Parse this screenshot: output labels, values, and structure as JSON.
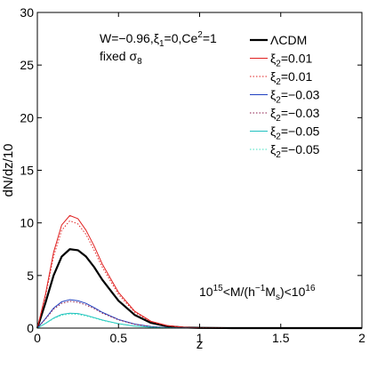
{
  "chart_data": {
    "type": "line",
    "xlabel": "z",
    "ylabel": "dN/dz/10",
    "xlim": [
      0,
      2
    ],
    "ylim": [
      0,
      30
    ],
    "xticks": [
      "0",
      "0.5",
      "1",
      "1.5",
      "2"
    ],
    "yticks": [
      "0",
      "5",
      "10",
      "15",
      "20",
      "25",
      "30"
    ],
    "grid": false,
    "legend_position": "top-right",
    "annotations": {
      "params_line1": "W=−0.96,ξ",
      "params_line1_sub": "1",
      "params_line1_rest": "=0,Ce",
      "params_line1_sup": "2",
      "params_line1_end": "=1",
      "params_line2": "fixed σ",
      "params_line2_sub": "8",
      "mass_range_a": "10",
      "mass_range_a_sup": "15",
      "mass_range_b": "<M/(h",
      "mass_range_b_sup": "−1",
      "mass_range_c": "M",
      "mass_range_c_sub": "s",
      "mass_range_d": ")<10",
      "mass_range_d_sup": "16"
    },
    "series": [
      {
        "name": "ΛCDM",
        "name_main": "ΛCDM",
        "name_sub": "",
        "name_rest": "",
        "color": "#000000",
        "style": "solid",
        "width": 2.2,
        "x": [
          0,
          0.05,
          0.1,
          0.15,
          0.2,
          0.25,
          0.3,
          0.35,
          0.4,
          0.5,
          0.6,
          0.7,
          0.8,
          0.9,
          1.0,
          1.2,
          1.5,
          2.0
        ],
        "y": [
          0,
          2.4,
          5.0,
          6.8,
          7.5,
          7.4,
          6.8,
          5.8,
          4.6,
          2.6,
          1.25,
          0.5,
          0.18,
          0.06,
          0.02,
          0,
          0,
          0
        ]
      },
      {
        "name": "ξ2=0.01",
        "name_main": "ξ",
        "name_sub": "2",
        "name_rest": "=0.01",
        "color": "#e02020",
        "style": "solid",
        "width": 1,
        "x": [
          0,
          0.05,
          0.1,
          0.15,
          0.2,
          0.25,
          0.3,
          0.35,
          0.4,
          0.5,
          0.6,
          0.7,
          0.8,
          0.9,
          1.0,
          1.2,
          1.5,
          2.0
        ],
        "y": [
          0,
          3.2,
          7.2,
          9.8,
          10.7,
          10.4,
          9.3,
          7.8,
          6.1,
          3.4,
          1.6,
          0.65,
          0.24,
          0.08,
          0.02,
          0,
          0,
          0
        ]
      },
      {
        "name": "ξ2=0.01",
        "name_main": "ξ",
        "name_sub": "2",
        "name_rest": "=0.01",
        "color": "#e02020",
        "style": "dotted",
        "width": 1,
        "x": [
          0,
          0.05,
          0.1,
          0.15,
          0.2,
          0.25,
          0.3,
          0.35,
          0.4,
          0.5,
          0.6,
          0.7,
          0.8,
          0.9,
          1.0,
          1.2,
          1.5,
          2.0
        ],
        "y": [
          0,
          3.0,
          6.8,
          9.3,
          10.2,
          9.9,
          8.9,
          7.4,
          5.8,
          3.2,
          1.5,
          0.6,
          0.22,
          0.07,
          0.02,
          0,
          0,
          0
        ]
      },
      {
        "name": "ξ2=−0.03",
        "name_main": "ξ",
        "name_sub": "2",
        "name_rest": "=−0.03",
        "color": "#2040c0",
        "style": "solid",
        "width": 1,
        "x": [
          0,
          0.05,
          0.1,
          0.15,
          0.2,
          0.25,
          0.3,
          0.35,
          0.4,
          0.5,
          0.6,
          0.7,
          0.8,
          0.9,
          1.0,
          1.2,
          1.5,
          2.0
        ],
        "y": [
          0,
          0.9,
          1.9,
          2.5,
          2.7,
          2.6,
          2.35,
          1.95,
          1.5,
          0.82,
          0.38,
          0.15,
          0.05,
          0.02,
          0,
          0,
          0,
          0
        ]
      },
      {
        "name": "ξ2=−0.03",
        "name_main": "ξ",
        "name_sub": "2",
        "name_rest": "=−0.03",
        "color": "#8b1a4a",
        "style": "dotted",
        "width": 1,
        "x": [
          0,
          0.05,
          0.1,
          0.15,
          0.2,
          0.25,
          0.3,
          0.35,
          0.4,
          0.5,
          0.6,
          0.7,
          0.8,
          0.9,
          1.0,
          1.2,
          1.5,
          2.0
        ],
        "y": [
          0,
          0.85,
          1.8,
          2.35,
          2.55,
          2.45,
          2.2,
          1.85,
          1.42,
          0.78,
          0.36,
          0.14,
          0.05,
          0.02,
          0,
          0,
          0,
          0
        ]
      },
      {
        "name": "ξ2=−0.05",
        "name_main": "ξ",
        "name_sub": "2",
        "name_rest": "=−0.05",
        "color": "#20c0c0",
        "style": "solid",
        "width": 1,
        "x": [
          0,
          0.05,
          0.1,
          0.15,
          0.2,
          0.25,
          0.3,
          0.35,
          0.4,
          0.5,
          0.6,
          0.7,
          0.8,
          0.9,
          1.0,
          1.2,
          1.5,
          2.0
        ],
        "y": [
          0,
          0.45,
          0.95,
          1.3,
          1.42,
          1.38,
          1.22,
          1.0,
          0.77,
          0.42,
          0.19,
          0.08,
          0.03,
          0.01,
          0,
          0,
          0,
          0
        ]
      },
      {
        "name": "ξ2=−0.05",
        "name_main": "ξ",
        "name_sub": "2",
        "name_rest": "=−0.05",
        "color": "#40e0c0",
        "style": "dotted",
        "width": 1,
        "x": [
          0,
          0.05,
          0.1,
          0.15,
          0.2,
          0.25,
          0.3,
          0.35,
          0.4,
          0.5,
          0.6,
          0.7,
          0.8,
          0.9,
          1.0,
          1.2,
          1.5,
          2.0
        ],
        "y": [
          0,
          0.42,
          0.9,
          1.22,
          1.34,
          1.3,
          1.15,
          0.95,
          0.73,
          0.4,
          0.18,
          0.07,
          0.03,
          0.01,
          0,
          0,
          0,
          0
        ]
      }
    ]
  }
}
